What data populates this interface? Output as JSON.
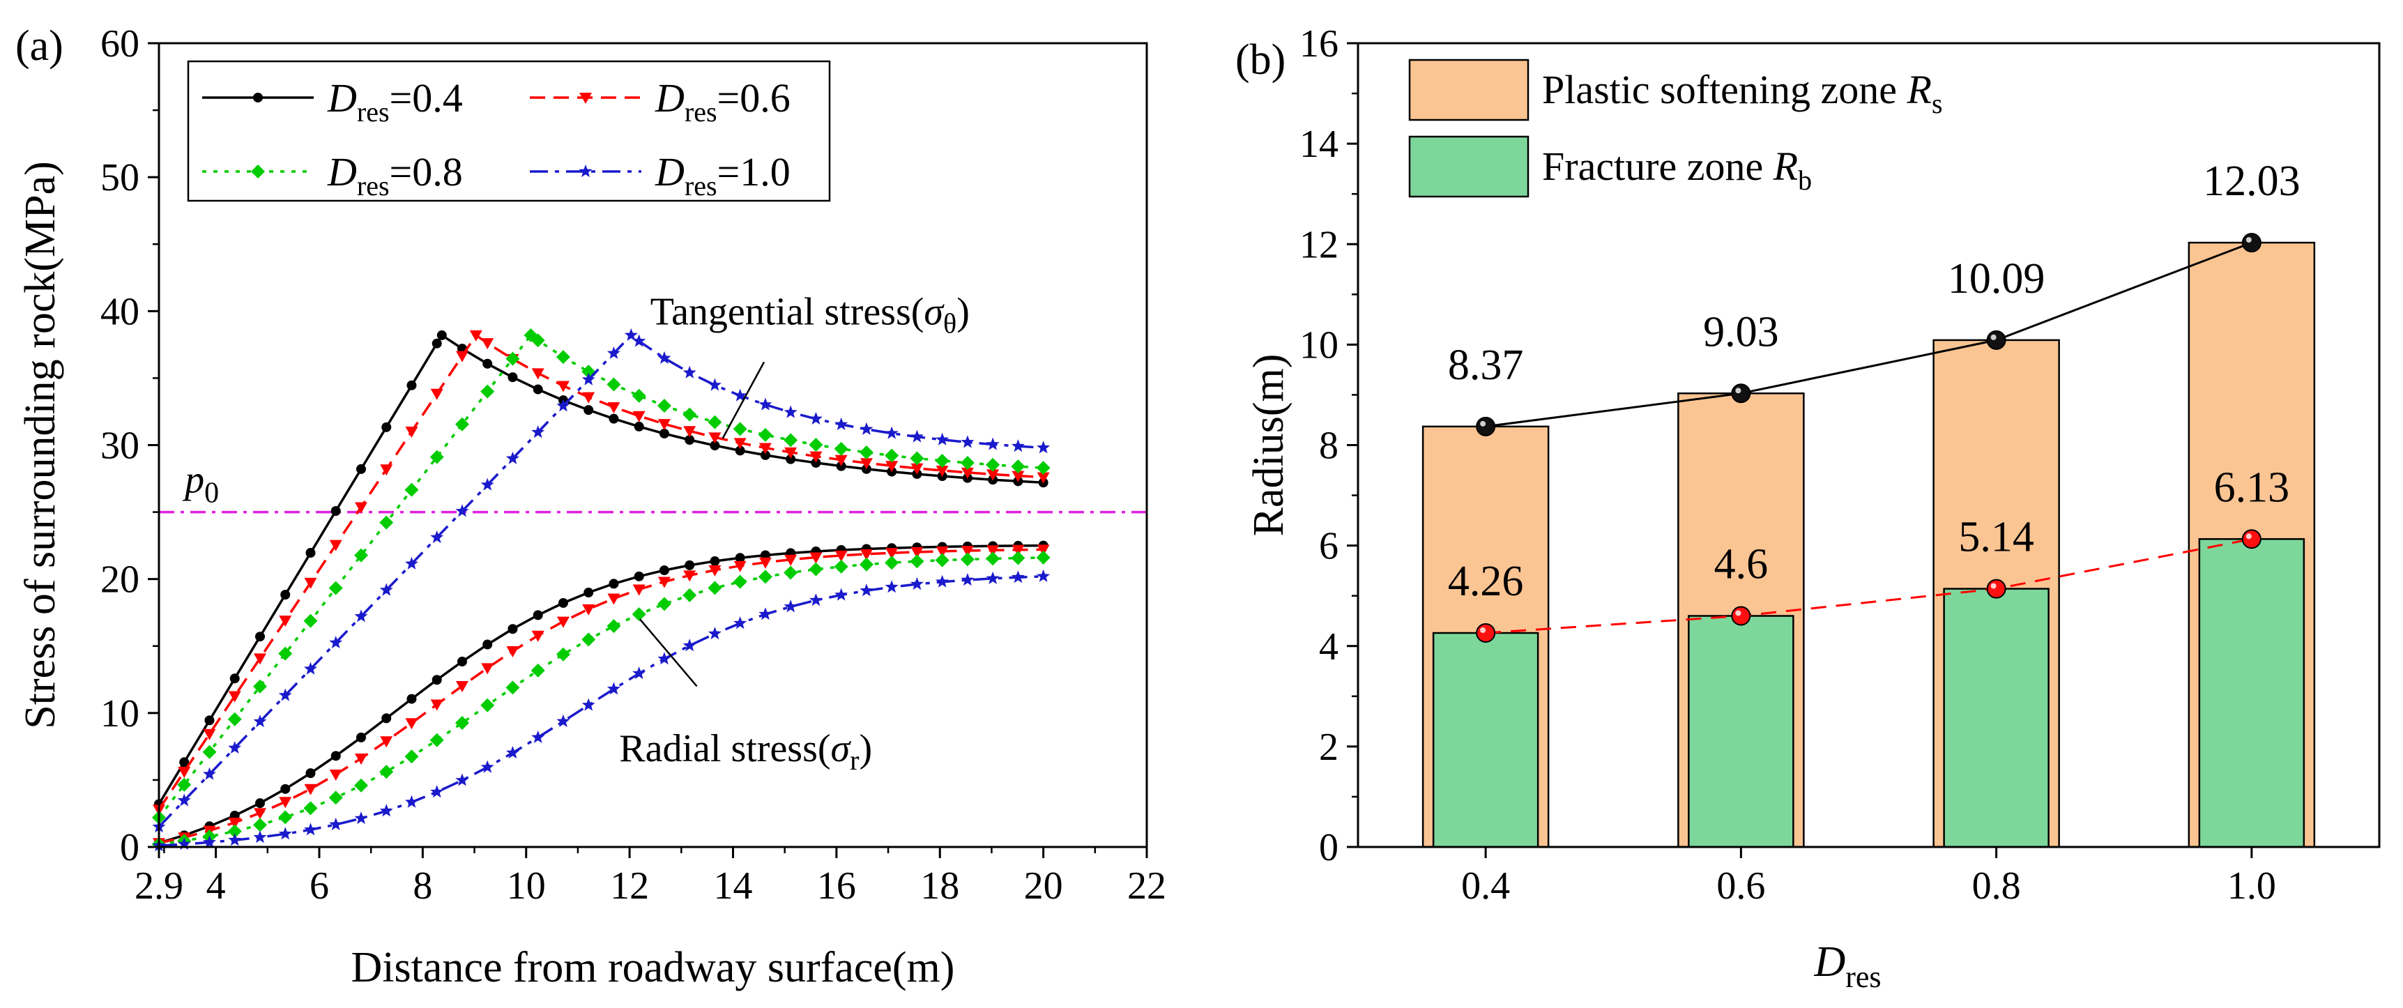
{
  "chart_data": [
    {
      "panel": "(a)",
      "type": "line",
      "xlabel": "Distance from roadway surface(m)",
      "ylabel": "Stress of surrounding rock(MPa)",
      "xlim": [
        2.9,
        22
      ],
      "ylim": [
        0,
        60
      ],
      "xticks": [
        2.9,
        4,
        6,
        8,
        10,
        12,
        14,
        16,
        18,
        20,
        22
      ],
      "xtick_labels": [
        "2.9",
        "4",
        "6",
        "8",
        "10",
        "12",
        "14",
        "16",
        "18",
        "20",
        "22"
      ],
      "yticks": [
        0,
        10,
        20,
        30,
        40,
        50,
        60
      ],
      "ytick_labels": [
        "0",
        "10",
        "20",
        "30",
        "40",
        "50",
        "60"
      ],
      "reference_line": {
        "label": "p",
        "label_sub": "0",
        "y": 25,
        "color": "#e020e0"
      },
      "annotations": [
        {
          "text": "Tangential stress(",
          "symbol": "σ",
          "sub": "θ",
          "close": ")",
          "target": [
            13.8,
            30.5
          ]
        },
        {
          "text": "Radial stress(",
          "symbol": "σ",
          "sub": "r",
          "close": ")",
          "target": [
            12.2,
            17.0
          ]
        }
      ],
      "legend": {
        "position": "top-left",
        "columns": 2
      },
      "series": [
        {
          "name": "D",
          "name_sub": "res",
          "name_val": "=0.4",
          "D": 0.4,
          "color": "#000000",
          "dash": "none",
          "marker": "circle",
          "R": 8.37,
          "tangential": {
            "x_peak": 8.37,
            "y_start": 3.2,
            "y_peak": 38.2,
            "y_end": 27.2
          },
          "radial": {
            "x_mid": 7.5,
            "y_start": 0.3,
            "y_end": 22.5
          }
        },
        {
          "name": "D",
          "name_sub": "res",
          "name_val": "=0.6",
          "D": 0.6,
          "color": "#ff0000",
          "dash": "22,12",
          "marker": "triangle-down",
          "R": 9.03,
          "tangential": {
            "x_peak": 9.03,
            "y_start": 2.8,
            "y_peak": 38.2,
            "y_end": 27.6
          },
          "radial": {
            "x_mid": 8.2,
            "y_start": 0.3,
            "y_end": 22.2
          }
        },
        {
          "name": "D",
          "name_sub": "res",
          "name_val": "=0.8",
          "D": 0.8,
          "color": "#00cc00",
          "dash": "6,10",
          "marker": "diamond",
          "R": 10.09,
          "tangential": {
            "x_peak": 10.09,
            "y_start": 2.2,
            "y_peak": 38.2,
            "y_end": 28.3
          },
          "radial": {
            "x_mid": 9.2,
            "y_start": 0.2,
            "y_end": 21.6
          }
        },
        {
          "name": "D",
          "name_sub": "res",
          "name_val": "=1.0",
          "D": 1.0,
          "color": "#1a1acc",
          "dash": "26,10,6,10",
          "marker": "star",
          "R": 12.03,
          "tangential": {
            "x_peak": 12.03,
            "y_start": 1.5,
            "y_peak": 38.2,
            "y_end": 29.8
          },
          "radial": {
            "x_mid": 11.0,
            "y_start": 0.1,
            "y_end": 20.2
          }
        }
      ]
    },
    {
      "panel": "(b)",
      "type": "bar",
      "xlabel": "D",
      "xlabel_sub": "res",
      "ylabel": "Radius(m)",
      "ylim": [
        0,
        16
      ],
      "yticks": [
        0,
        2,
        4,
        6,
        8,
        10,
        12,
        14,
        16
      ],
      "ytick_labels": [
        "0",
        "2",
        "4",
        "6",
        "8",
        "10",
        "12",
        "14",
        "16"
      ],
      "categories": [
        "0.4",
        "0.6",
        "0.8",
        "1.0"
      ],
      "series": [
        {
          "name": "Plastic softening zone ",
          "name_italic": "R",
          "name_sub": "s",
          "color": "#fbc593",
          "values": [
            8.37,
            9.03,
            10.09,
            12.03
          ],
          "labels": [
            "8.37",
            "9.03",
            "10.09",
            "12.03"
          ],
          "line_color": "#000000",
          "line_dash": "none"
        },
        {
          "name": "Fracture zone ",
          "name_italic": "R",
          "name_sub": "b",
          "color": "#7dd79b",
          "values": [
            4.26,
            4.6,
            5.14,
            6.13
          ],
          "labels": [
            "4.26",
            "4.6",
            "5.14",
            "6.13"
          ],
          "line_color": "#ff0000",
          "line_dash": "22,14"
        }
      ],
      "legend": {
        "position": "top-left"
      }
    }
  ]
}
